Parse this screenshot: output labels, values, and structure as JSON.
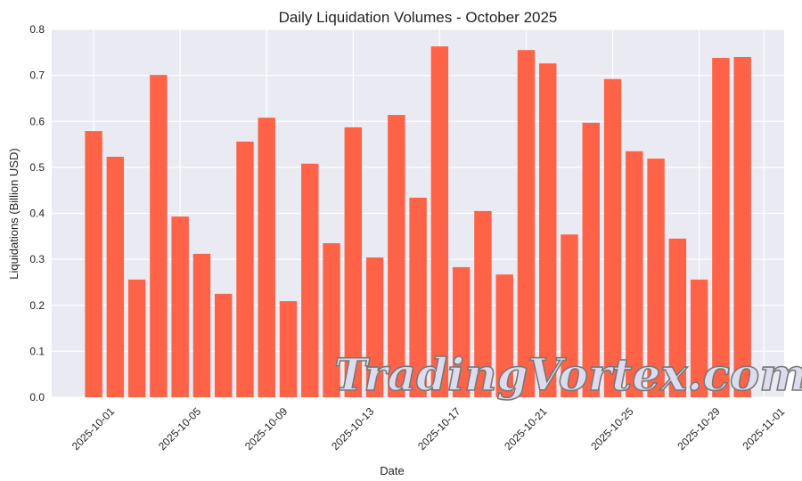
{
  "chart_data": {
    "type": "bar",
    "title": "Daily Liquidation Volumes - October 2025",
    "xlabel": "Date",
    "ylabel": "Liquidations (Billion USD)",
    "ylim": [
      0,
      0.8
    ],
    "yticks": [
      "0.0",
      "0.1",
      "0.2",
      "0.3",
      "0.4",
      "0.5",
      "0.6",
      "0.7",
      "0.8"
    ],
    "xlim": [
      "2025-09-29",
      "2025-11-01"
    ],
    "xticks": [
      "2025-10-01",
      "2025-10-05",
      "2025-10-09",
      "2025-10-13",
      "2025-10-17",
      "2025-10-21",
      "2025-10-25",
      "2025-10-29",
      "2025-11-01"
    ],
    "grid": true,
    "bar_color": "#ff6347",
    "background_color": "#eaeaf2",
    "categories": [
      "2025-10-01",
      "2025-10-02",
      "2025-10-03",
      "2025-10-04",
      "2025-10-05",
      "2025-10-06",
      "2025-10-07",
      "2025-10-08",
      "2025-10-09",
      "2025-10-10",
      "2025-10-11",
      "2025-10-12",
      "2025-10-13",
      "2025-10-14",
      "2025-10-15",
      "2025-10-16",
      "2025-10-17",
      "2025-10-18",
      "2025-10-19",
      "2025-10-20",
      "2025-10-21",
      "2025-10-22",
      "2025-10-23",
      "2025-10-24",
      "2025-10-25",
      "2025-10-26",
      "2025-10-27",
      "2025-10-28",
      "2025-10-29",
      "2025-10-30",
      "2025-10-31"
    ],
    "values": [
      0.579,
      0.523,
      0.256,
      0.701,
      0.393,
      0.312,
      0.225,
      0.556,
      0.608,
      0.209,
      0.508,
      0.335,
      0.587,
      0.304,
      0.614,
      0.434,
      0.763,
      0.283,
      0.405,
      0.267,
      0.755,
      0.726,
      0.354,
      0.597,
      0.692,
      0.535,
      0.519,
      0.345,
      0.256,
      0.738,
      0.74
    ]
  },
  "watermark": "TradingVortex.com"
}
